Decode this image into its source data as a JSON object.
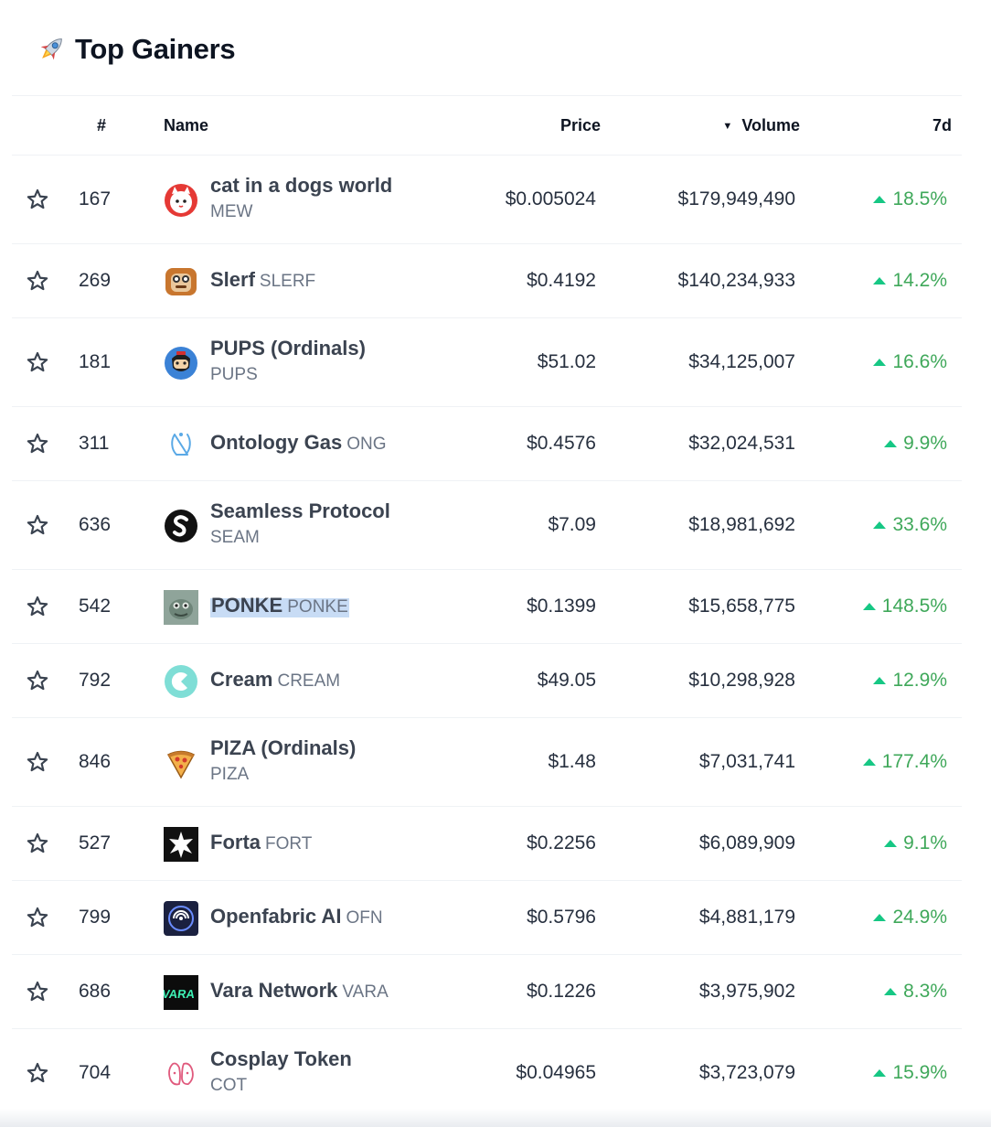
{
  "title": "Top Gainers",
  "colors": {
    "green": "#16c784",
    "text": "#0d1421",
    "muted": "#6b7585",
    "highlight": "#c8dcf5"
  },
  "header": {
    "rank": "#",
    "name": "Name",
    "price": "Price",
    "volume": "Volume",
    "change": "7d",
    "sort_icon": "sort-desc-icon"
  },
  "rows": [
    {
      "rank": "167",
      "name": "cat in a dogs world",
      "symbol": "MEW",
      "price": "$0.005024",
      "volume": "$179,949,490",
      "change": "18.5%",
      "icon": "mew-logo"
    },
    {
      "rank": "269",
      "name": "Slerf",
      "symbol": "SLERF",
      "price": "$0.4192",
      "volume": "$140,234,933",
      "change": "14.2%",
      "icon": "slerf-logo"
    },
    {
      "rank": "181",
      "name": "PUPS (Ordinals)",
      "symbol": "PUPS",
      "price": "$51.02",
      "volume": "$34,125,007",
      "change": "16.6%",
      "icon": "pups-logo"
    },
    {
      "rank": "311",
      "name": "Ontology Gas",
      "symbol": "ONG",
      "price": "$0.4576",
      "volume": "$32,024,531",
      "change": "9.9%",
      "icon": "ong-logo"
    },
    {
      "rank": "636",
      "name": "Seamless Protocol",
      "symbol": "SEAM",
      "price": "$7.09",
      "volume": "$18,981,692",
      "change": "33.6%",
      "icon": "seam-logo"
    },
    {
      "rank": "542",
      "name": "PONKE",
      "symbol": "PONKE",
      "price": "$0.1399",
      "volume": "$15,658,775",
      "change": "148.5%",
      "icon": "ponke-logo"
    },
    {
      "rank": "792",
      "name": "Cream",
      "symbol": "CREAM",
      "price": "$49.05",
      "volume": "$10,298,928",
      "change": "12.9%",
      "icon": "cream-logo"
    },
    {
      "rank": "846",
      "name": "PIZA (Ordinals)",
      "symbol": "PIZA",
      "price": "$1.48",
      "volume": "$7,031,741",
      "change": "177.4%",
      "icon": "piza-logo"
    },
    {
      "rank": "527",
      "name": "Forta",
      "symbol": "FORT",
      "price": "$0.2256",
      "volume": "$6,089,909",
      "change": "9.1%",
      "icon": "forta-logo"
    },
    {
      "rank": "799",
      "name": "Openfabric AI",
      "symbol": "OFN",
      "price": "$0.5796",
      "volume": "$4,881,179",
      "change": "24.9%",
      "icon": "ofn-logo"
    },
    {
      "rank": "686",
      "name": "Vara Network",
      "symbol": "VARA",
      "price": "$0.1226",
      "volume": "$3,975,902",
      "change": "8.3%",
      "icon": "vara-logo"
    },
    {
      "rank": "704",
      "name": "Cosplay Token",
      "symbol": "COT",
      "price": "$0.04965",
      "volume": "$3,723,079",
      "change": "15.9%",
      "icon": "cot-logo"
    }
  ]
}
